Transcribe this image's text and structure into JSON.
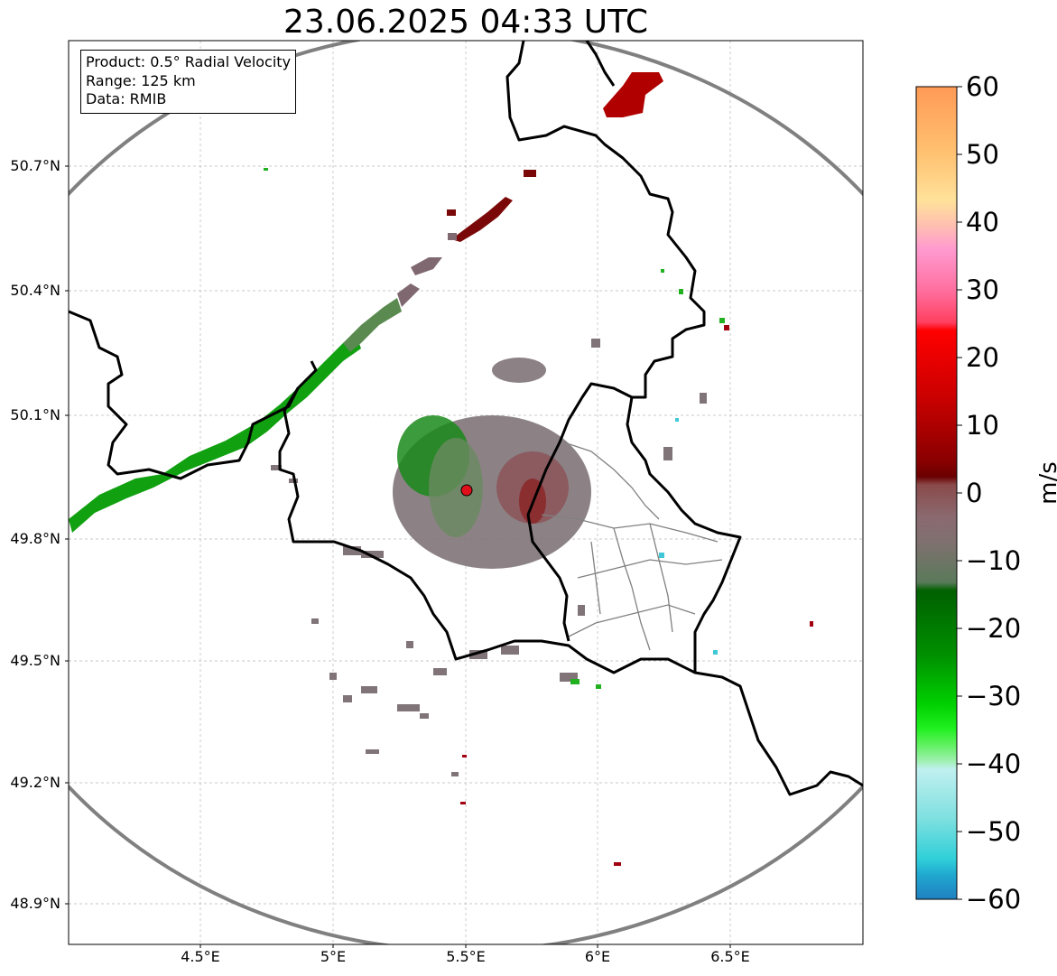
{
  "title": "23.06.2025 04:33 UTC",
  "info_box": {
    "product": "Product: 0.5° Radial Velocity",
    "range": "Range: 125 km",
    "data": "Data: RMIB"
  },
  "lat_ticks": [
    "50.7°N",
    "50.4°N",
    "50.1°N",
    "49.8°N",
    "49.5°N",
    "49.2°N",
    "48.9°N"
  ],
  "lon_ticks": [
    "4.5°E",
    "5°E",
    "5.5°E",
    "6°E",
    "6.5°E"
  ],
  "colorbar": {
    "label": "m/s",
    "ticks": [
      "60",
      "50",
      "40",
      "30",
      "20",
      "10",
      "0",
      "−10",
      "−20",
      "−30",
      "−40",
      "−50",
      "−60"
    ]
  },
  "colors": {
    "range_ring": "#808080",
    "border": "#000000",
    "admin_border": "#808080",
    "grid": "#b0b0b0",
    "radar_site": "#e0101a"
  }
}
